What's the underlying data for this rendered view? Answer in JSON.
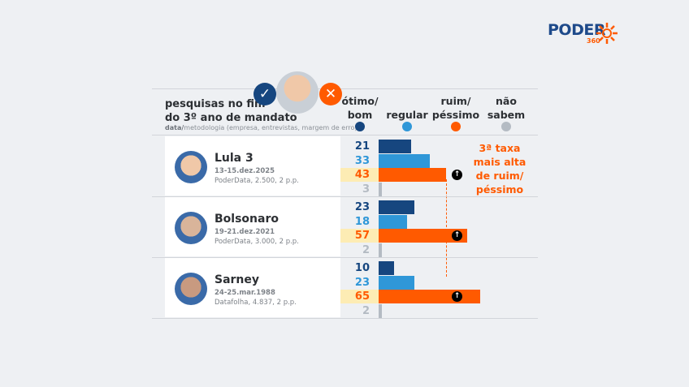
{
  "brand": {
    "name": "PODER",
    "sub": "360"
  },
  "header": {
    "title_line1": "pesquisas no fim",
    "title_line2": "do 3º ano de mandato",
    "subtitle_bold": "data/",
    "subtitle": "metodologia (empresa, entrevistas, margem de erro)"
  },
  "legend": [
    {
      "line1": "ótimo/",
      "line2": "bom",
      "color": "#16467f"
    },
    {
      "line1": "",
      "line2": "regular",
      "color": "#2f97d8"
    },
    {
      "line1": "ruim/",
      "line2": "péssimo",
      "color": "#ff5a00"
    },
    {
      "line1": "não",
      "line2": "sabem",
      "color": "#b4bbc3"
    }
  ],
  "annotation": {
    "line1": "3ª taxa",
    "line2": "mais alta",
    "line3": "de ruim/",
    "line4": "péssimo"
  },
  "chart_data": {
    "type": "bar",
    "orientation": "horizontal",
    "categories": [
      "Lula 3",
      "Bolsonaro",
      "Sarney"
    ],
    "series": [
      {
        "name": "ótimo/bom",
        "values": [
          21,
          23,
          10
        ],
        "color": "#16467f"
      },
      {
        "name": "regular",
        "values": [
          33,
          18,
          23
        ],
        "color": "#2f97d8"
      },
      {
        "name": "ruim/péssimo",
        "values": [
          43,
          57,
          65
        ],
        "color": "#ff5a00"
      },
      {
        "name": "não sabem",
        "values": [
          3,
          2,
          2
        ],
        "color": "#b4bbc3"
      }
    ]
  },
  "rows": [
    {
      "name": "Lula 3",
      "date": "13-15.dez.2025",
      "meta": "PoderData, 2.500, 2 p.p."
    },
    {
      "name": "Bolsonaro",
      "date": "19-21.dez.2021",
      "meta": "PoderData, 3.000, 2 p.p."
    },
    {
      "name": "Sarney",
      "date": "24-25.mar.1988",
      "meta": "Datafolha, 4.837, 2 p.p."
    }
  ]
}
